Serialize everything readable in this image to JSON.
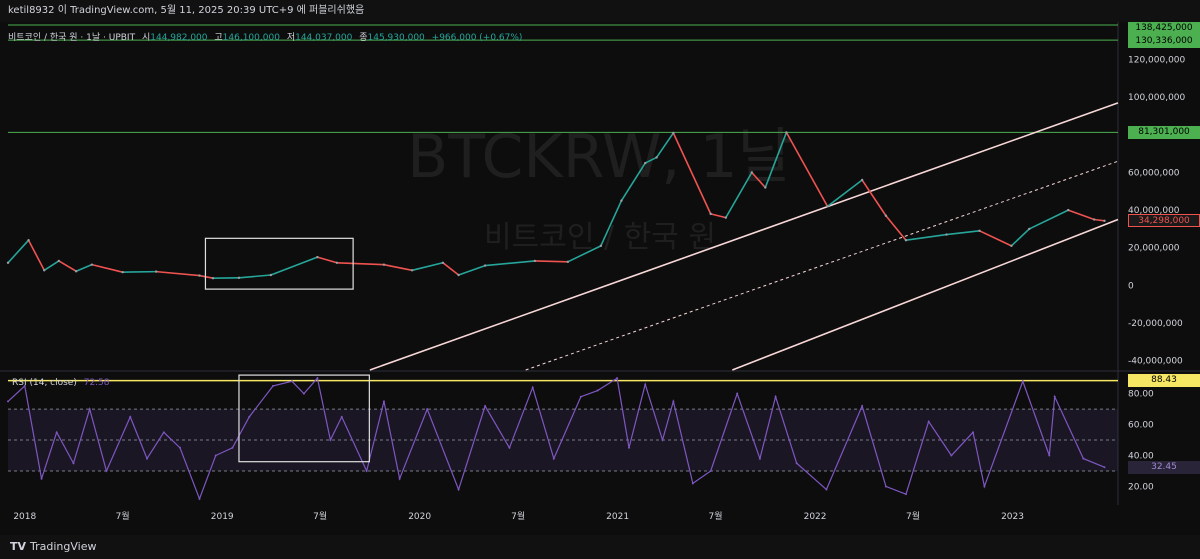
{
  "header": {
    "text": "ketil8932 이 TradingView.com, 5월 11, 2025 20:39 UTC+9 에 퍼블리쉬했음"
  },
  "legend": {
    "symbol": "비트코인 / 한국 원 · 1날 · UPBIT",
    "o_label": "시",
    "o_value": "144,982,000",
    "h_label": "고",
    "h_value": "146,100,000",
    "l_label": "저",
    "l_value": "144,037,000",
    "c_label": "종",
    "c_value": "145,930,000",
    "change": "+966,000 (+0.67%)"
  },
  "watermark": {
    "ticker": "BTCKRW, 1날",
    "name": "비트코인 / 한국 원"
  },
  "rsi_legend": {
    "name": "RSI (14, close)",
    "value": "72.58"
  },
  "colors": {
    "up": "#26a69a",
    "down": "#ef5350",
    "green_line": "#4caf50",
    "channel": "#f8d7d7",
    "rsi": "#7e57c2",
    "rsi_level": "#f5e663",
    "box": "#e0e0e0"
  },
  "chart_data": [
    {
      "type": "line",
      "title": "비트코인 / 한국 원 · 1날 · UPBIT",
      "x_ticks": [
        "2018",
        "7월",
        "2019",
        "7월",
        "2020",
        "7월",
        "2021",
        "7월",
        "2022",
        "7월",
        "2023"
      ],
      "y_ticks": [
        "120,000,000",
        "100,000,000",
        "80,000,000",
        "60,000,000",
        "40,000,000",
        "20,000,000",
        "0",
        "-20,000,000",
        "-40,000,000"
      ],
      "ylim": [
        -45000000,
        140000000
      ],
      "series": [
        {
          "values_by_date": [
            [
              "2017-12-01",
              12000000
            ],
            [
              "2018-01-08",
              24000000
            ],
            [
              "2018-02-06",
              8000000
            ],
            [
              "2018-03-05",
              13000000
            ],
            [
              "2018-04-06",
              7500000
            ],
            [
              "2018-05-05",
              11000000
            ],
            [
              "2018-07-01",
              7000000
            ],
            [
              "2018-09-01",
              7300000
            ],
            [
              "2018-11-20",
              5200000
            ],
            [
              "2018-12-15",
              3800000
            ],
            [
              "2019-02-01",
              4000000
            ],
            [
              "2019-04-01",
              5500000
            ],
            [
              "2019-06-26",
              15000000
            ],
            [
              "2019-08-01",
              12000000
            ],
            [
              "2019-10-27",
              11000000
            ],
            [
              "2019-12-18",
              8000000
            ],
            [
              "2020-02-13",
              12000000
            ],
            [
              "2020-03-13",
              5500000
            ],
            [
              "2020-05-01",
              10500000
            ],
            [
              "2020-08-01",
              13000000
            ],
            [
              "2020-10-01",
              12500000
            ],
            [
              "2020-12-01",
              21000000
            ],
            [
              "2021-01-08",
              45000000
            ],
            [
              "2021-02-21",
              65000000
            ],
            [
              "2021-03-14",
              68000000
            ],
            [
              "2021-04-14",
              81000000
            ],
            [
              "2021-06-22",
              38000000
            ],
            [
              "2021-07-20",
              36000000
            ],
            [
              "2021-09-06",
              60000000
            ],
            [
              "2021-10-01",
              52000000
            ],
            [
              "2021-11-09",
              81300000
            ],
            [
              "2022-01-24",
              42000000
            ],
            [
              "2022-03-29",
              56000000
            ],
            [
              "2022-05-12",
              37000000
            ],
            [
              "2022-06-18",
              24000000
            ],
            [
              "2022-09-01",
              27000000
            ],
            [
              "2022-11-01",
              29000000
            ],
            [
              "2022-12-30",
              21000000
            ],
            [
              "2023-02-01",
              30000000
            ],
            [
              "2023-04-14",
              40000000
            ],
            [
              "2023-06-01",
              35000000
            ],
            [
              "2023-06-20",
              34298000
            ]
          ]
        }
      ],
      "horizontal_levels": [
        138425000,
        130336000,
        81301000
      ],
      "price_labels": {
        "top1": "138,425,000",
        "top2": "130,336,000",
        "mid": "81,301,000",
        "last": "34,298,000"
      },
      "channel": {
        "upper": [
          [
            "2019-10-01",
            -45000000
          ],
          [
            "2023-07-15",
            97000000
          ]
        ],
        "middle": [
          [
            "2020-07-15",
            -45000000
          ],
          [
            "2023-07-15",
            66000000
          ]
        ],
        "lower": [
          [
            "2021-08-01",
            -45000000
          ],
          [
            "2023-07-15",
            35000000
          ]
        ]
      },
      "highlight_box": {
        "start": "2018-12-01",
        "end": "2019-08-31",
        "low": -2000000,
        "high": 25000000
      }
    },
    {
      "type": "line",
      "title": "RSI (14, close)",
      "y_ticks": [
        "80.00",
        "60.00",
        "40.00",
        "20.00"
      ],
      "ylim": [
        8,
        94
      ],
      "levels": {
        "upper_band": 70,
        "middle": 50,
        "lower_band": 30,
        "yellow": 88.43
      },
      "price_labels": {
        "level": "88.43",
        "last": "32.45"
      },
      "series": [
        {
          "values_by_date": [
            [
              "2017-12-01",
              75
            ],
            [
              "2018-01-01",
              85
            ],
            [
              "2018-02-01",
              25
            ],
            [
              "2018-03-01",
              55
            ],
            [
              "2018-04-01",
              35
            ],
            [
              "2018-05-01",
              70
            ],
            [
              "2018-06-01",
              30
            ],
            [
              "2018-07-15",
              65
            ],
            [
              "2018-08-15",
              38
            ],
            [
              "2018-09-15",
              55
            ],
            [
              "2018-10-15",
              45
            ],
            [
              "2018-11-20",
              12
            ],
            [
              "2018-12-20",
              40
            ],
            [
              "2019-01-20",
              45
            ],
            [
              "2019-02-20",
              65
            ],
            [
              "2019-04-05",
              85
            ],
            [
              "2019-05-10",
              88
            ],
            [
              "2019-06-01",
              80
            ],
            [
              "2019-06-26",
              90
            ],
            [
              "2019-07-20",
              50
            ],
            [
              "2019-08-10",
              65
            ],
            [
              "2019-09-25",
              30
            ],
            [
              "2019-10-27",
              75
            ],
            [
              "2019-11-25",
              25
            ],
            [
              "2020-01-15",
              70
            ],
            [
              "2020-03-13",
              18
            ],
            [
              "2020-05-01",
              72
            ],
            [
              "2020-06-15",
              45
            ],
            [
              "2020-07-28",
              84
            ],
            [
              "2020-09-05",
              38
            ],
            [
              "2020-10-25",
              78
            ],
            [
              "2020-11-25",
              82
            ],
            [
              "2020-12-31",
              90
            ],
            [
              "2021-01-22",
              45
            ],
            [
              "2021-02-21",
              86
            ],
            [
              "2021-03-25",
              50
            ],
            [
              "2021-04-14",
              75
            ],
            [
              "2021-05-20",
              22
            ],
            [
              "2021-06-22",
              30
            ],
            [
              "2021-08-10",
              80
            ],
            [
              "2021-09-21",
              38
            ],
            [
              "2021-10-20",
              78
            ],
            [
              "2021-11-28",
              35
            ],
            [
              "2022-01-22",
              18
            ],
            [
              "2022-03-29",
              72
            ],
            [
              "2022-05-12",
              20
            ],
            [
              "2022-06-18",
              15
            ],
            [
              "2022-07-30",
              62
            ],
            [
              "2022-09-10",
              40
            ],
            [
              "2022-10-20",
              55
            ],
            [
              "2022-11-10",
              20
            ],
            [
              "2023-01-20",
              88
            ],
            [
              "2023-03-10",
              40
            ],
            [
              "2023-03-20",
              78
            ],
            [
              "2023-05-12",
              38
            ],
            [
              "2023-06-20",
              32.45
            ]
          ]
        }
      ],
      "highlight_box": {
        "start": "2019-02-01",
        "end": "2019-09-30",
        "low": 36,
        "high": 92
      }
    }
  ]
}
